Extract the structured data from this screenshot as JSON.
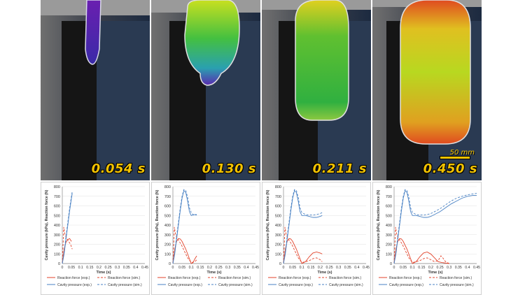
{
  "panels": [
    {
      "time_label": "0.054 s",
      "scale_label": ""
    },
    {
      "time_label": "0.130 s",
      "scale_label": ""
    },
    {
      "time_label": "0.211 s",
      "scale_label": ""
    },
    {
      "time_label": "0.450 s",
      "scale_label": "50 mm"
    }
  ],
  "colors": {
    "reaction": "#e3432b",
    "pressure": "#4a82c4",
    "time_label": "#f2c200"
  },
  "chart_data": [
    {
      "type": "line",
      "xlabel": "Time (s)",
      "ylabel": "Cavity pressure (kPa), Reaction force (N)",
      "xlim": [
        0,
        0.45
      ],
      "ylim": [
        0,
        800
      ],
      "xticks": [
        "0",
        "0.05",
        "0.1",
        "0.15",
        "0.2",
        "0.25",
        "0.3",
        "0.35",
        "0.4",
        "0.45"
      ],
      "yticks": [
        "0",
        "100",
        "200",
        "300",
        "400",
        "500",
        "600",
        "700",
        "800"
      ],
      "legend": [
        "Reaction force (exp.)",
        "Reaction force (sim.)",
        "Cavity pressure (exp.)",
        "Cavity pressure (sim.)"
      ],
      "series": [
        {
          "name": "Reaction force (exp.)",
          "x": [
            0,
            0.01,
            0.02,
            0.03,
            0.04,
            0.05
          ],
          "y": [
            0,
            150,
            220,
            250,
            260,
            230
          ]
        },
        {
          "name": "Reaction force (sim.)",
          "x": [
            0,
            0.008,
            0.015,
            0.025,
            0.035,
            0.045,
            0.054
          ],
          "y": [
            0,
            380,
            300,
            260,
            230,
            200,
            150
          ]
        },
        {
          "name": "Cavity pressure (exp.)",
          "x": [
            0,
            0.01,
            0.02,
            0.03,
            0.04,
            0.05,
            0.054
          ],
          "y": [
            0,
            100,
            250,
            400,
            550,
            680,
            730
          ]
        },
        {
          "name": "Cavity pressure (sim.)",
          "x": [
            0,
            0.01,
            0.02,
            0.03,
            0.04,
            0.05,
            0.054
          ],
          "y": [
            0,
            120,
            280,
            430,
            580,
            700,
            750
          ]
        }
      ]
    },
    {
      "type": "line",
      "xlabel": "Time (s)",
      "ylabel": "Cavity pressure (kPa), Reaction force (N)",
      "xlim": [
        0,
        0.45
      ],
      "ylim": [
        0,
        800
      ],
      "xticks": [
        "0",
        "0.05",
        "0.1",
        "0.15",
        "0.2",
        "0.25",
        "0.3",
        "0.35",
        "0.4",
        "0.45"
      ],
      "yticks": [
        "0",
        "100",
        "200",
        "300",
        "400",
        "500",
        "600",
        "700",
        "800"
      ],
      "legend": [
        "Reaction force (exp.)",
        "Reaction force (sim.)",
        "Cavity pressure (exp.)",
        "Cavity pressure (sim.)"
      ],
      "series": [
        {
          "name": "Reaction force (exp.)",
          "x": [
            0,
            0.01,
            0.02,
            0.03,
            0.04,
            0.05,
            0.07,
            0.09,
            0.1,
            0.11,
            0.12,
            0.13
          ],
          "y": [
            0,
            150,
            230,
            260,
            255,
            230,
            150,
            50,
            0,
            10,
            50,
            80
          ]
        },
        {
          "name": "Reaction force (sim.)",
          "x": [
            0,
            0.008,
            0.015,
            0.025,
            0.035,
            0.045,
            0.06,
            0.08,
            0.1,
            0.12,
            0.13
          ],
          "y": [
            0,
            380,
            300,
            260,
            230,
            200,
            140,
            60,
            10,
            20,
            40
          ]
        },
        {
          "name": "Cavity pressure (exp.)",
          "x": [
            0,
            0.01,
            0.02,
            0.03,
            0.04,
            0.05,
            0.06,
            0.07,
            0.08,
            0.09,
            0.1,
            0.11,
            0.12,
            0.13
          ],
          "y": [
            0,
            100,
            250,
            400,
            550,
            680,
            760,
            740,
            650,
            540,
            500,
            505,
            510,
            510
          ]
        },
        {
          "name": "Cavity pressure (sim.)",
          "x": [
            0,
            0.01,
            0.02,
            0.03,
            0.04,
            0.05,
            0.06,
            0.07,
            0.08,
            0.09,
            0.1,
            0.11,
            0.12,
            0.13
          ],
          "y": [
            0,
            120,
            280,
            430,
            580,
            700,
            770,
            760,
            690,
            580,
            530,
            510,
            505,
            505
          ]
        }
      ]
    },
    {
      "type": "line",
      "xlabel": "Time (s)",
      "ylabel": "Cavity pressure (kPa), Reaction force (N)",
      "xlim": [
        0,
        0.45
      ],
      "ylim": [
        0,
        800
      ],
      "xticks": [
        "0",
        "0.05",
        "0.1",
        "0.15",
        "0.2",
        "0.25",
        "0.3",
        "0.35",
        "0.4",
        "0.45"
      ],
      "yticks": [
        "0",
        "100",
        "200",
        "300",
        "400",
        "500",
        "600",
        "700",
        "800"
      ],
      "legend": [
        "Reaction force (exp.)",
        "Reaction force (sim.)",
        "Cavity pressure (exp.)",
        "Cavity pressure (sim.)"
      ],
      "series": [
        {
          "name": "Reaction force (exp.)",
          "x": [
            0,
            0.01,
            0.02,
            0.03,
            0.04,
            0.05,
            0.07,
            0.09,
            0.1,
            0.12,
            0.14,
            0.16,
            0.18,
            0.2,
            0.211
          ],
          "y": [
            0,
            150,
            230,
            260,
            255,
            230,
            150,
            50,
            0,
            20,
            70,
            110,
            120,
            110,
            100
          ]
        },
        {
          "name": "Reaction force (sim.)",
          "x": [
            0,
            0.008,
            0.015,
            0.025,
            0.035,
            0.045,
            0.06,
            0.08,
            0.1,
            0.12,
            0.14,
            0.16,
            0.18,
            0.2,
            0.211
          ],
          "y": [
            0,
            380,
            300,
            260,
            230,
            200,
            140,
            60,
            10,
            20,
            30,
            50,
            60,
            40,
            20
          ]
        },
        {
          "name": "Cavity pressure (exp.)",
          "x": [
            0,
            0.01,
            0.02,
            0.03,
            0.04,
            0.05,
            0.06,
            0.07,
            0.08,
            0.09,
            0.1,
            0.12,
            0.14,
            0.16,
            0.18,
            0.2,
            0.211
          ],
          "y": [
            0,
            100,
            250,
            400,
            550,
            680,
            760,
            740,
            650,
            540,
            500,
            500,
            490,
            480,
            480,
            490,
            500
          ]
        },
        {
          "name": "Cavity pressure (sim.)",
          "x": [
            0,
            0.01,
            0.02,
            0.03,
            0.04,
            0.05,
            0.06,
            0.07,
            0.08,
            0.09,
            0.1,
            0.12,
            0.14,
            0.16,
            0.18,
            0.2,
            0.211
          ],
          "y": [
            0,
            120,
            280,
            430,
            580,
            700,
            770,
            760,
            690,
            580,
            530,
            510,
            505,
            505,
            510,
            520,
            530
          ]
        }
      ]
    },
    {
      "type": "line",
      "xlabel": "Time (s)",
      "ylabel": "Cavity pressure (kPa), Reaction force (N)",
      "xlim": [
        0,
        0.45
      ],
      "ylim": [
        0,
        800
      ],
      "xticks": [
        "0",
        "0.05",
        "0.1",
        "0.15",
        "0.2",
        "0.25",
        "0.3",
        "0.35",
        "0.4",
        "0.45"
      ],
      "yticks": [
        "0",
        "100",
        "200",
        "300",
        "400",
        "500",
        "600",
        "700",
        "800"
      ],
      "legend": [
        "Reaction force (exp.)",
        "Reaction force (sim.)",
        "Cavity pressure (exp.)",
        "Cavity pressure (sim.)"
      ],
      "series": [
        {
          "name": "Reaction force (exp.)",
          "x": [
            0,
            0.01,
            0.02,
            0.03,
            0.04,
            0.05,
            0.07,
            0.09,
            0.1,
            0.12,
            0.14,
            0.16,
            0.18,
            0.2,
            0.22,
            0.24,
            0.26,
            0.28,
            0.3
          ],
          "y": [
            0,
            150,
            230,
            260,
            255,
            230,
            150,
            50,
            0,
            20,
            70,
            110,
            120,
            100,
            60,
            20,
            10,
            5,
            0
          ]
        },
        {
          "name": "Reaction force (sim.)",
          "x": [
            0,
            0.008,
            0.015,
            0.025,
            0.035,
            0.045,
            0.06,
            0.08,
            0.1,
            0.12,
            0.14,
            0.16,
            0.18,
            0.2,
            0.22,
            0.24,
            0.255,
            0.265,
            0.28,
            0.3
          ],
          "y": [
            0,
            380,
            300,
            260,
            230,
            200,
            140,
            60,
            10,
            20,
            30,
            50,
            60,
            40,
            20,
            30,
            80,
            60,
            20,
            0
          ]
        },
        {
          "name": "Cavity pressure (exp.)",
          "x": [
            0,
            0.01,
            0.02,
            0.03,
            0.04,
            0.05,
            0.06,
            0.07,
            0.08,
            0.09,
            0.1,
            0.12,
            0.14,
            0.16,
            0.18,
            0.2,
            0.22,
            0.25,
            0.28,
            0.31,
            0.34,
            0.37,
            0.4,
            0.43,
            0.45
          ],
          "y": [
            0,
            100,
            250,
            400,
            550,
            680,
            760,
            740,
            650,
            540,
            500,
            500,
            490,
            480,
            480,
            490,
            510,
            540,
            580,
            620,
            650,
            680,
            700,
            710,
            710
          ]
        },
        {
          "name": "Cavity pressure (sim.)",
          "x": [
            0,
            0.01,
            0.02,
            0.03,
            0.04,
            0.05,
            0.06,
            0.07,
            0.08,
            0.09,
            0.1,
            0.12,
            0.14,
            0.16,
            0.18,
            0.2,
            0.22,
            0.25,
            0.28,
            0.31,
            0.34,
            0.37,
            0.4,
            0.43,
            0.45
          ],
          "y": [
            0,
            120,
            280,
            430,
            580,
            700,
            770,
            760,
            690,
            580,
            530,
            510,
            505,
            505,
            510,
            520,
            540,
            570,
            610,
            650,
            680,
            700,
            715,
            725,
            730
          ]
        }
      ]
    }
  ]
}
